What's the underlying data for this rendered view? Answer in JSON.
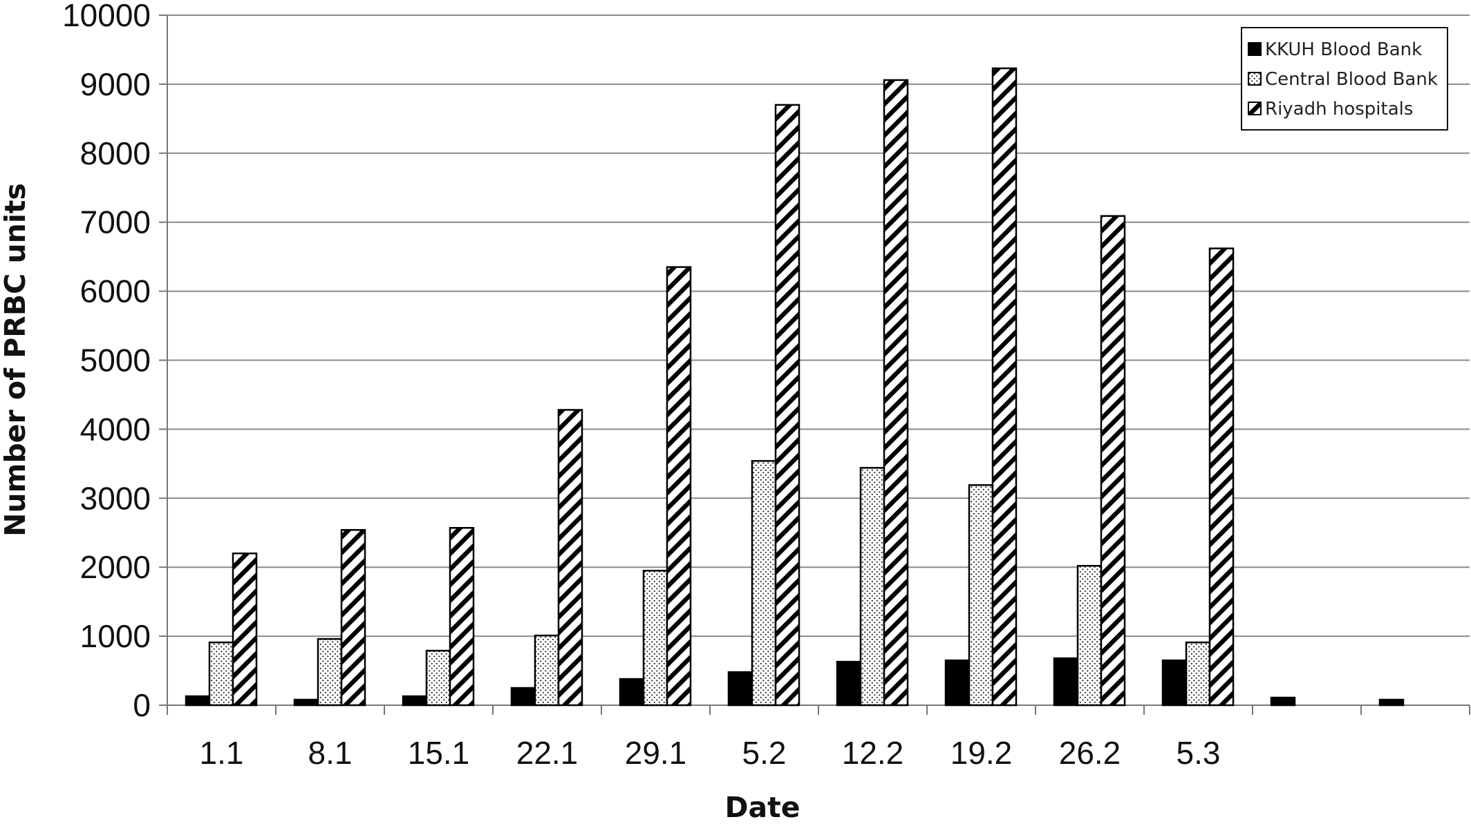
{
  "chart_data": {
    "type": "bar",
    "title": "",
    "xlabel": "Date",
    "ylabel": "Number of PRBC units",
    "ylim": [
      0,
      10000
    ],
    "yticks": [
      0,
      1000,
      2000,
      3000,
      4000,
      5000,
      6000,
      7000,
      8000,
      9000,
      10000
    ],
    "categories": [
      "1.1",
      "8.1",
      "15.1",
      "22.1",
      "29.1",
      "5.2",
      "12.2",
      "19.2",
      "26.2",
      "5.3",
      "",
      ""
    ],
    "grid": true,
    "legend_position": "top-right",
    "series": [
      {
        "name": "KKUH Blood Bank",
        "pattern": "solid",
        "color": "#000000",
        "values": [
          130,
          80,
          130,
          250,
          380,
          480,
          630,
          650,
          680,
          650,
          110,
          80
        ]
      },
      {
        "name": "Central Blood Bank",
        "pattern": "dots",
        "color": "#000000",
        "values": [
          910,
          960,
          790,
          1010,
          1950,
          3540,
          3440,
          3190,
          2020,
          910,
          null,
          null
        ]
      },
      {
        "name": "Riyadh hospitals",
        "pattern": "diagonal",
        "color": "#000000",
        "values": [
          2200,
          2540,
          2570,
          4280,
          6350,
          8700,
          9060,
          9230,
          7090,
          6620,
          null,
          null
        ]
      }
    ]
  }
}
